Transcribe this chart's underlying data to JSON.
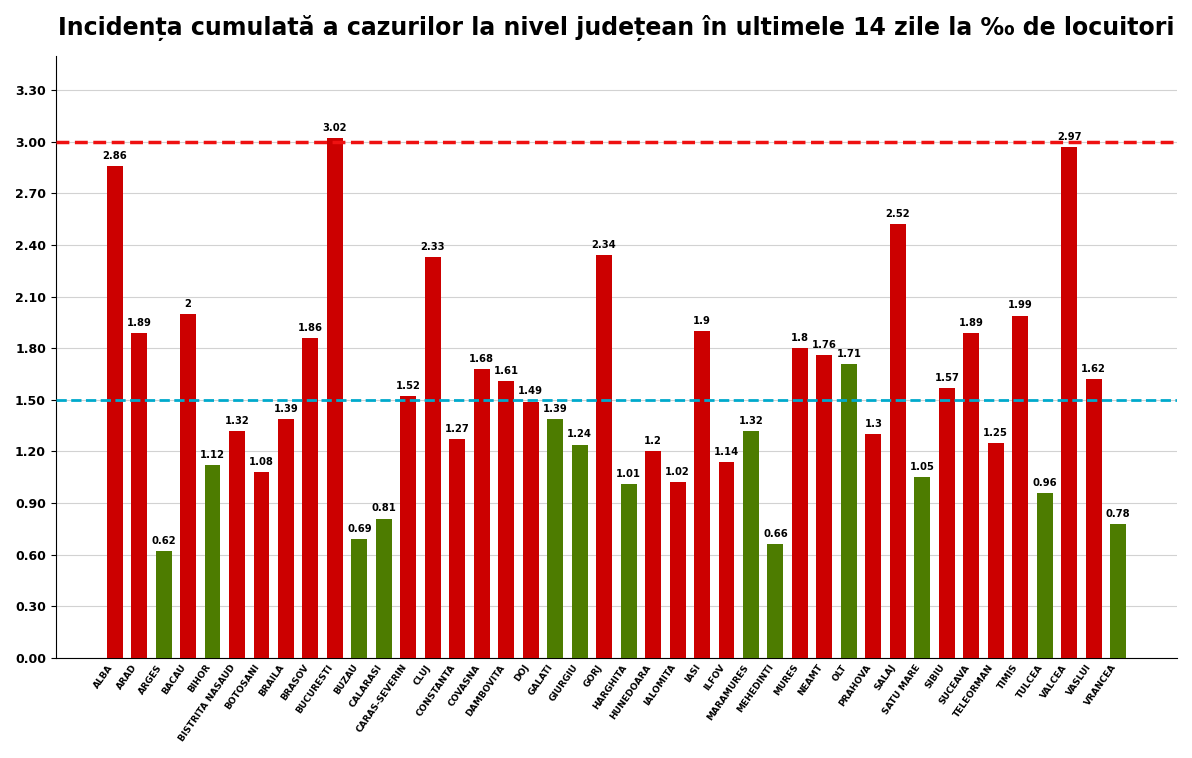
{
  "title": "Incidența cumulată a cazurilor la nivel județean în ultimele 14 zile la ‰ de locuitori",
  "categories": [
    "ALBA",
    "ARAD",
    "ARGES",
    "BACAU",
    "BIHOR",
    "BISTRITA NASAUD",
    "BOTOSANI",
    "BRAILA",
    "BRASOV",
    "BUCURESTI",
    "BUZAU",
    "CALARASI",
    "CARAS-SEVERIN",
    "CLUJ",
    "CONSTANTA",
    "COVASNA",
    "DAMBOVITA",
    "DOJ",
    "GALATI",
    "GIURGIU",
    "GORJ",
    "HARGHITA",
    "HUNEDOARA",
    "IALOMITA",
    "IASI",
    "ILFOV",
    "MARAMURES",
    "MEHEDINTI",
    "MURES",
    "NEAMT",
    "OLT",
    "PRAHOVA",
    "SALAJ",
    "SATU MARE",
    "SIBIU",
    "SUCEAVA",
    "TELEORMAN",
    "TIMIS",
    "TULCEA",
    "VALCEA",
    "VASLUI",
    "VRANCEA"
  ],
  "values": [
    2.86,
    1.89,
    0.62,
    2.0,
    1.12,
    1.32,
    1.08,
    1.39,
    1.86,
    3.02,
    0.69,
    0.81,
    1.52,
    2.33,
    1.27,
    1.68,
    1.61,
    1.49,
    1.39,
    1.24,
    2.34,
    1.01,
    1.2,
    1.02,
    1.9,
    1.14,
    1.32,
    0.66,
    1.8,
    1.76,
    1.71,
    1.3,
    2.52,
    1.05,
    1.57,
    1.89,
    1.25,
    1.99,
    0.96,
    2.97,
    1.62,
    0.78
  ],
  "value_labels": [
    "2.86",
    "1.89",
    "0.62",
    "2",
    "1.12",
    "1.32",
    "1.08",
    "1.39",
    "1.86",
    "3.02",
    "0.69",
    "0.81",
    "1.52",
    "2.33",
    "1.27",
    "1.68",
    "1.61",
    "1.49",
    "1.39",
    "1.24",
    "2.34",
    "1.01",
    "1.2",
    "1.02",
    "1.9",
    "1.14",
    "1.32",
    "0.66",
    "1.8",
    "1.76",
    "1.71",
    "1.3",
    "2.52",
    "1.05",
    "1.57",
    "1.89",
    "1.25",
    "1.99",
    "0.96",
    "2.97",
    "1.62",
    "0.78"
  ],
  "bar_colors": [
    "#cc0000",
    "#cc0000",
    "#4d7c00",
    "#cc0000",
    "#4d7c00",
    "#cc0000",
    "#cc0000",
    "#cc0000",
    "#cc0000",
    "#cc0000",
    "#4d7c00",
    "#4d7c00",
    "#cc0000",
    "#cc0000",
    "#cc0000",
    "#cc0000",
    "#cc0000",
    "#cc0000",
    "#4d7c00",
    "#4d7c00",
    "#cc0000",
    "#4d7c00",
    "#cc0000",
    "#cc0000",
    "#cc0000",
    "#cc0000",
    "#4d7c00",
    "#4d7c00",
    "#cc0000",
    "#cc0000",
    "#4d7c00",
    "#cc0000",
    "#cc0000",
    "#4d7c00",
    "#cc0000",
    "#cc0000",
    "#cc0000",
    "#cc0000",
    "#4d7c00",
    "#cc0000",
    "#cc0000",
    "#4d7c00"
  ],
  "red_line": 3.0,
  "blue_line": 1.5,
  "red_line_color": "#ee1111",
  "blue_line_color": "#00aacc",
  "ylim_max": 3.5,
  "yticks": [
    0.0,
    0.3,
    0.6,
    0.9,
    1.2,
    1.5,
    1.8,
    2.1,
    2.4,
    2.7,
    3.0,
    3.3
  ],
  "title_fontsize": 17,
  "background_color": "#ffffff",
  "label_fontsize": 6.5,
  "value_fontsize": 7.2
}
